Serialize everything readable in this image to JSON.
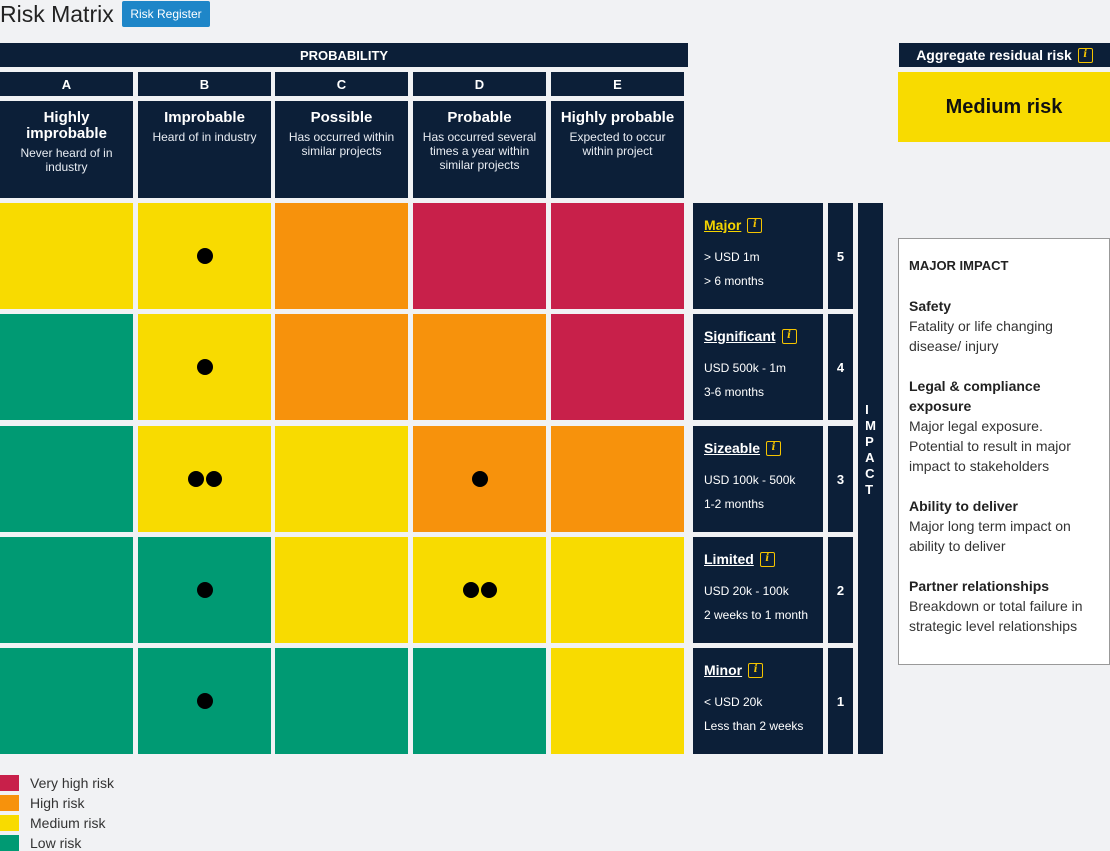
{
  "page": {
    "title": "Risk Matrix",
    "register_button": "Risk Register"
  },
  "colors": {
    "very_high": "#c8204a",
    "high": "#f7920c",
    "medium": "#f8db00",
    "low": "#009a73",
    "navy": "#0c1f38"
  },
  "probability": {
    "header": "PROBABILITY",
    "columns": [
      {
        "letter": "A",
        "name": "Highly improbable",
        "desc": "Never heard of in industry"
      },
      {
        "letter": "B",
        "name": "Improbable",
        "desc": "Heard of in industry"
      },
      {
        "letter": "C",
        "name": "Possible",
        "desc": "Has occurred within similar projects"
      },
      {
        "letter": "D",
        "name": "Probable",
        "desc": "Has occurred several times a year within similar projects"
      },
      {
        "letter": "E",
        "name": "Highly probable",
        "desc": "Expected to occur within project"
      }
    ]
  },
  "impact": {
    "axis_label": "IMPACT",
    "rows": [
      {
        "level": "5",
        "name": "Major",
        "line1": "> USD 1m",
        "line2": "> 6 months",
        "active": true
      },
      {
        "level": "4",
        "name": "Significant",
        "line1": "USD 500k - 1m",
        "line2": "3-6 months"
      },
      {
        "level": "3",
        "name": "Sizeable",
        "line1": "USD 100k - 500k",
        "line2": "1-2 months"
      },
      {
        "level": "2",
        "name": "Limited",
        "line1": "USD 20k - 100k",
        "line2": "2 weeks to 1 month"
      },
      {
        "level": "1",
        "name": "Minor",
        "line1": "< USD 20k",
        "line2": "Less than 2 weeks"
      }
    ]
  },
  "matrix": {
    "rows": [
      {
        "risks": [
          "medium",
          "medium",
          "high",
          "very_high",
          "very_high"
        ],
        "counts": [
          0,
          1,
          0,
          0,
          0
        ]
      },
      {
        "risks": [
          "low",
          "medium",
          "high",
          "high",
          "very_high"
        ],
        "counts": [
          0,
          1,
          0,
          0,
          0
        ]
      },
      {
        "risks": [
          "low",
          "medium",
          "medium",
          "high",
          "high"
        ],
        "counts": [
          0,
          2,
          0,
          1,
          0
        ]
      },
      {
        "risks": [
          "low",
          "low",
          "medium",
          "medium",
          "medium"
        ],
        "counts": [
          0,
          1,
          0,
          2,
          0
        ]
      },
      {
        "risks": [
          "low",
          "low",
          "low",
          "low",
          "medium"
        ],
        "counts": [
          0,
          1,
          0,
          0,
          0
        ]
      }
    ]
  },
  "aggregate": {
    "header": "Aggregate residual risk",
    "value": "Medium risk"
  },
  "detail": {
    "title": "MAJOR IMPACT",
    "sections": [
      {
        "heading": "Safety",
        "text": "Fatality or life changing disease/ injury"
      },
      {
        "heading": "Legal & compliance exposure",
        "text": "Major legal exposure. Potential to result in major impact to stakeholders"
      },
      {
        "heading": "Ability to deliver",
        "text": "Major long term impact on ability to deliver"
      },
      {
        "heading": "Partner relationships",
        "text": "Breakdown or total failure in strategic level relationships"
      }
    ]
  },
  "legend": [
    {
      "label": "Very high risk",
      "key": "very_high"
    },
    {
      "label": "High risk",
      "key": "high"
    },
    {
      "label": "Medium risk",
      "key": "medium"
    },
    {
      "label": "Low risk",
      "key": "low"
    }
  ]
}
